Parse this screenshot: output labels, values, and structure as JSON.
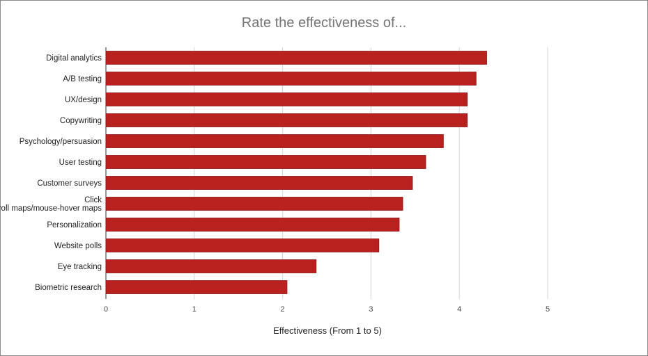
{
  "chart_data": {
    "type": "bar",
    "orientation": "horizontal",
    "title": "Rate the effectiveness of...",
    "xlabel": "Effectiveness (From 1 to 5)",
    "ylabel": "",
    "categories": [
      "Digital analytics",
      "A/B testing",
      "UX/design",
      "Copywriting",
      "Psychology/persuasion",
      "User testing",
      "Customer surveys",
      "Click maps/scroll maps/mouse-hover maps",
      "Personalization",
      "Website polls",
      "Eye tracking",
      "Biometric research"
    ],
    "values": [
      4.31,
      4.19,
      4.09,
      4.09,
      3.82,
      3.62,
      3.47,
      3.36,
      3.32,
      3.09,
      2.38,
      2.05
    ],
    "xlim": [
      0,
      5
    ],
    "xticks": [
      "0",
      "1",
      "2",
      "3",
      "4",
      "5"
    ],
    "grid": true,
    "legend": "none",
    "bar_color": "#b8211d"
  }
}
